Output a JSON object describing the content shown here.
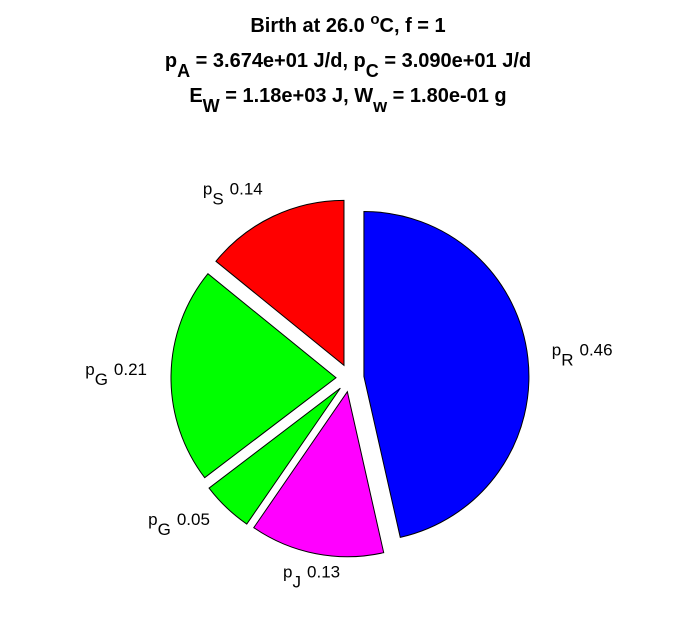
{
  "chart_data": {
    "type": "pie",
    "title": [
      [
        {
          "t": "Birth at 26.0 "
        },
        {
          "t": "o",
          "sup": true
        },
        {
          "t": "C, f = 1"
        }
      ],
      [
        {
          "t": "p"
        },
        {
          "t": "A",
          "sub": true
        },
        {
          "t": " = 3.674e+01 J/d, p"
        },
        {
          "t": "C",
          "sub": true
        },
        {
          "t": " = 3.090e+01 J/d"
        }
      ],
      [
        {
          "t": "E"
        },
        {
          "t": "W",
          "sub": true
        },
        {
          "t": " = 1.18e+03 J, W"
        },
        {
          "t": "w",
          "sub": true
        },
        {
          "t": " = 1.80e-01 g"
        }
      ]
    ],
    "categories": [
      {
        "text": "p",
        "sub": "R"
      },
      {
        "text": "p",
        "sub": "J"
      },
      {
        "text": "p",
        "sub": "G"
      },
      {
        "text": "p",
        "sub": "G"
      },
      {
        "text": "p",
        "sub": "S"
      }
    ],
    "values": [
      0.46,
      0.13,
      0.05,
      0.21,
      0.14
    ],
    "colors": [
      "#0000ff",
      "#ff00ff",
      "#00ff00",
      "#00ff00",
      "#ff0000"
    ]
  }
}
